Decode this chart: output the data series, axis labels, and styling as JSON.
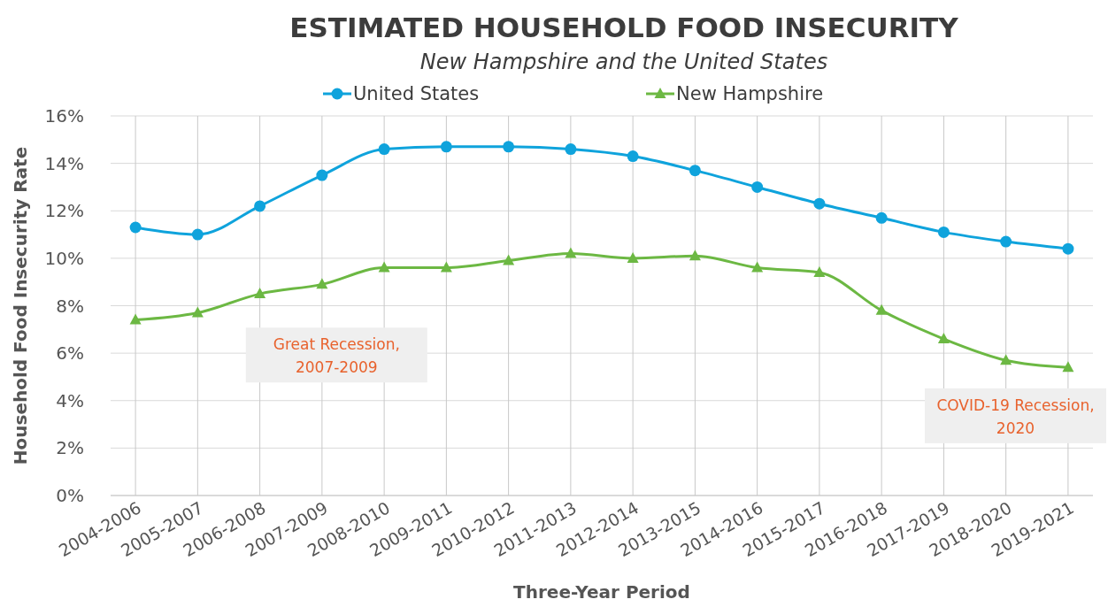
{
  "chart_data": {
    "type": "line",
    "title": "ESTIMATED HOUSEHOLD FOOD INSECURITY",
    "subtitle": "New Hampshire and the United States",
    "xlabel": "Three-Year Period",
    "ylabel": "Household Food Insecurity Rate",
    "categories": [
      "2004-2006",
      "2005-2007",
      "2006-2008",
      "2007-2009",
      "2008-2010",
      "2009-2011",
      "2010-2012",
      "2011-2013",
      "2012-2014",
      "2013-2015",
      "2014-2016",
      "2015-2017",
      "2016-2018",
      "2017-2019",
      "2018-2020",
      "2019-2021"
    ],
    "series": [
      {
        "name": "United States",
        "color": "#0fa3dc",
        "marker": "circle",
        "values": [
          11.3,
          11.0,
          12.2,
          13.5,
          14.6,
          14.7,
          14.7,
          14.6,
          14.3,
          13.7,
          13.0,
          12.3,
          11.7,
          11.1,
          10.7,
          10.4
        ]
      },
      {
        "name": "New Hampshire",
        "color": "#6cb843",
        "marker": "triangle",
        "values": [
          7.4,
          7.7,
          8.5,
          8.9,
          9.6,
          9.6,
          9.9,
          10.2,
          10.0,
          10.1,
          9.6,
          9.4,
          7.8,
          6.6,
          5.7,
          5.4
        ]
      }
    ],
    "ylim": [
      0,
      16
    ],
    "yticks": [
      {
        "value": 0,
        "label": "0%"
      },
      {
        "value": 2,
        "label": "2%"
      },
      {
        "value": 4,
        "label": "4%"
      },
      {
        "value": 6,
        "label": "6%"
      },
      {
        "value": 8,
        "label": "8%"
      },
      {
        "value": 10,
        "label": "10%"
      },
      {
        "value": 12,
        "label": "12%"
      },
      {
        "value": 14,
        "label": "14%"
      },
      {
        "value": 16,
        "label": "16%"
      }
    ],
    "grid": true,
    "legend": "top",
    "line_style": "solid",
    "annotations": [
      "Great Recession, 2007-2009",
      "COVID-19 Recession, 2020"
    ]
  }
}
